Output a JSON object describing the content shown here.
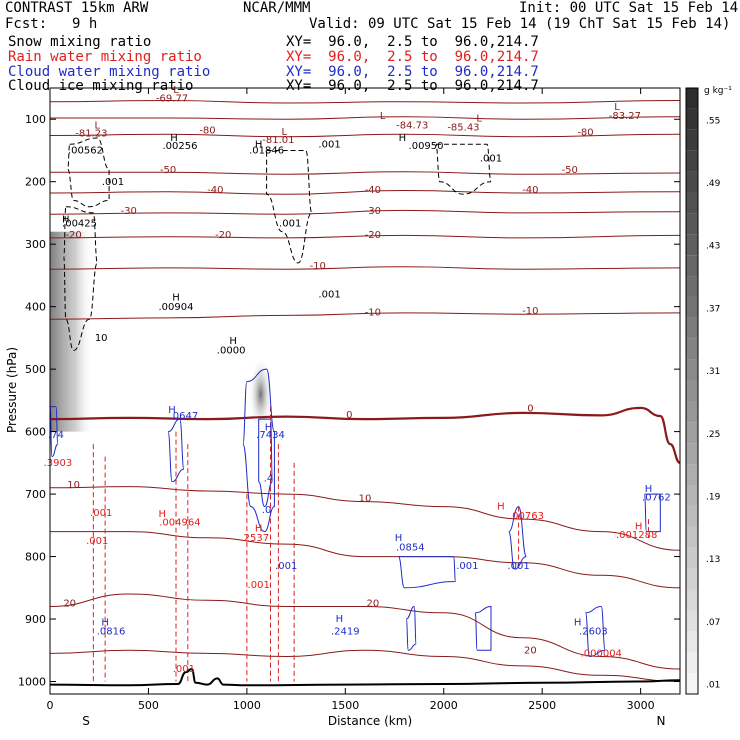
{
  "header": {
    "title_left": "CONTRAST 15km ARW",
    "title_center": "NCAR/MMM",
    "init": "Init: 00 UTC Sat 15 Feb 14",
    "fcst_label": "Fcst:",
    "fcst_value": "9 h",
    "valid": "Valid: 09 UTC Sat 15 Feb 14 (19 ChT Sat 15 Feb 14)"
  },
  "legend": [
    {
      "name": "Snow mixing ratio",
      "xy": "XY=  96.0,  2.5 to  96.0,214.7",
      "color": "#000000"
    },
    {
      "name": "Rain water mixing ratio",
      "xy": "XY=  96.0,  2.5 to  96.0,214.7",
      "color": "#e0201e"
    },
    {
      "name": "Cloud water mixing ratio",
      "xy": "XY=  96.0,  2.5 to  96.0,214.7",
      "color": "#1f2cc8"
    },
    {
      "name": "Cloud ice mixing ratio",
      "xy": "XY=  96.0,  2.5 to  96.0,214.7",
      "color": "#000000"
    }
  ],
  "colors": {
    "temperature": "#8b1a1a",
    "rain": "#e0201e",
    "cloud_water": "#1f2cc8",
    "ice": "#000000",
    "terrain": "#000000"
  },
  "chart_data": {
    "type": "cross-section",
    "xlabel": "Distance (km)",
    "ylabel": "Pressure (hPa)",
    "x_range": [
      0,
      3200
    ],
    "y_range": [
      50,
      1020
    ],
    "x_ticks": [
      "0",
      "500",
      "1000",
      "1500",
      "2000",
      "2500",
      "3000"
    ],
    "x_tick_values": [
      0,
      500,
      1000,
      1500,
      2000,
      2500,
      3000
    ],
    "y_ticks": [
      "100",
      "200",
      "300",
      "400",
      "500",
      "600",
      "700",
      "800",
      "900",
      "1000"
    ],
    "y_tick_values": [
      100,
      200,
      300,
      400,
      500,
      600,
      700,
      800,
      900,
      1000
    ],
    "endpoints": {
      "left": "S",
      "right": "N"
    },
    "colorbar": {
      "unit": "g kg⁻¹",
      "labels": [
        ".55",
        ".49",
        ".43",
        ".37",
        ".31",
        ".25",
        ".19",
        ".13",
        ".07",
        ".01"
      ],
      "label_values": [
        0.55,
        0.49,
        0.43,
        0.37,
        0.31,
        0.25,
        0.19,
        0.13,
        0.07,
        0.01
      ],
      "range": [
        0.0,
        0.58
      ]
    },
    "temperature_contours": [
      {
        "level": -70,
        "points": [
          [
            0,
            72
          ],
          [
            600,
            70
          ],
          [
            1200,
            74
          ],
          [
            1800,
            72
          ],
          [
            2400,
            74
          ],
          [
            3200,
            70
          ]
        ]
      },
      {
        "level": -60,
        "points": [
          [
            0,
            98
          ],
          [
            600,
            98
          ],
          [
            1200,
            100
          ],
          [
            1800,
            96
          ],
          [
            2400,
            100
          ],
          [
            3200,
            96
          ]
        ]
      },
      {
        "level": -50,
        "points": [
          [
            0,
            126
          ],
          [
            600,
            124
          ],
          [
            1200,
            128
          ],
          [
            1800,
            124
          ],
          [
            2400,
            128
          ],
          [
            3200,
            124
          ]
        ]
      },
      {
        "level": -50,
        "points": [
          [
            0,
            185
          ],
          [
            600,
            185
          ],
          [
            1200,
            188
          ],
          [
            1800,
            184
          ],
          [
            2400,
            188
          ],
          [
            3200,
            186
          ]
        ]
      },
      {
        "level": -40,
        "points": [
          [
            0,
            218
          ],
          [
            600,
            216
          ],
          [
            1200,
            220
          ],
          [
            1800,
            214
          ],
          [
            2400,
            218
          ],
          [
            3200,
            216
          ]
        ]
      },
      {
        "level": -30,
        "points": [
          [
            0,
            252
          ],
          [
            600,
            250
          ],
          [
            1200,
            252
          ],
          [
            1800,
            246
          ],
          [
            2400,
            250
          ],
          [
            3200,
            248
          ]
        ]
      },
      {
        "level": -20,
        "points": [
          [
            0,
            290
          ],
          [
            600,
            288
          ],
          [
            1200,
            290
          ],
          [
            1800,
            286
          ],
          [
            2400,
            290
          ],
          [
            3200,
            286
          ]
        ]
      },
      {
        "level": -10,
        "points": [
          [
            0,
            340
          ],
          [
            600,
            338
          ],
          [
            1200,
            340
          ],
          [
            1800,
            336
          ],
          [
            2400,
            340
          ],
          [
            3200,
            338
          ]
        ]
      },
      {
        "level": -10,
        "points": [
          [
            0,
            420
          ],
          [
            600,
            418
          ],
          [
            1200,
            414
          ],
          [
            1800,
            410
          ],
          [
            2400,
            412
          ],
          [
            3200,
            410
          ]
        ]
      },
      {
        "level": 0,
        "points": [
          [
            0,
            580
          ],
          [
            400,
            578
          ],
          [
            800,
            580
          ],
          [
            1200,
            576
          ],
          [
            1600,
            580
          ],
          [
            2000,
            578
          ],
          [
            2400,
            570
          ],
          [
            2800,
            574
          ],
          [
            3000,
            562
          ],
          [
            3100,
            575
          ],
          [
            3150,
            620
          ],
          [
            3200,
            650
          ]
        ]
      },
      {
        "level": 10,
        "points": [
          [
            0,
            690
          ],
          [
            400,
            688
          ],
          [
            800,
            695
          ],
          [
            1200,
            700
          ],
          [
            1600,
            712
          ],
          [
            2000,
            720
          ],
          [
            2400,
            740
          ],
          [
            2800,
            760
          ],
          [
            3200,
            790
          ]
        ]
      },
      {
        "level": 10,
        "points": [
          [
            0,
            760
          ],
          [
            400,
            760
          ],
          [
            800,
            770
          ],
          [
            1200,
            780
          ],
          [
            1600,
            800
          ],
          [
            2000,
            800
          ],
          [
            2400,
            810
          ],
          [
            2800,
            830
          ],
          [
            3200,
            850
          ]
        ]
      },
      {
        "level": 20,
        "points": [
          [
            0,
            880
          ],
          [
            400,
            860
          ],
          [
            800,
            870
          ],
          [
            1200,
            880
          ],
          [
            1600,
            880
          ],
          [
            2000,
            890
          ],
          [
            2400,
            930
          ],
          [
            2800,
            960
          ],
          [
            3200,
            980
          ]
        ]
      },
      {
        "level": 20,
        "points": [
          [
            0,
            955
          ],
          [
            400,
            950
          ],
          [
            800,
            955
          ],
          [
            1200,
            960
          ],
          [
            1600,
            950
          ],
          [
            2000,
            960
          ],
          [
            2400,
            975
          ],
          [
            2800,
            990
          ],
          [
            3200,
            1000
          ]
        ]
      }
    ],
    "temperature_labels": [
      {
        "text": "-69.77",
        "x": 620,
        "p": 72
      },
      {
        "text": "-81.23",
        "x": 210,
        "p": 128
      },
      {
        "text": "-81.01",
        "x": 1160,
        "p": 138
      },
      {
        "text": "-84.73",
        "x": 1840,
        "p": 115
      },
      {
        "text": "-85.43",
        "x": 2100,
        "p": 118
      },
      {
        "text": "-83.27",
        "x": 2920,
        "p": 100
      },
      {
        "text": "-80",
        "x": 800,
        "p": 123
      },
      {
        "text": "-80",
        "x": 2720,
        "p": 126
      },
      {
        "text": "-50",
        "x": 600,
        "p": 186
      },
      {
        "text": "-50",
        "x": 2640,
        "p": 186
      },
      {
        "text": "-40",
        "x": 840,
        "p": 218
      },
      {
        "text": "-40",
        "x": 1640,
        "p": 218
      },
      {
        "text": "-40",
        "x": 2440,
        "p": 218
      },
      {
        "text": "-30",
        "x": 400,
        "p": 252
      },
      {
        "text": "-30",
        "x": 1640,
        "p": 252
      },
      {
        "text": "-20",
        "x": 120,
        "p": 290
      },
      {
        "text": "-20",
        "x": 880,
        "p": 290
      },
      {
        "text": "-20",
        "x": 1640,
        "p": 290
      },
      {
        "text": "-10",
        "x": 1360,
        "p": 340
      },
      {
        "text": "-10",
        "x": 1640,
        "p": 414
      },
      {
        "text": "-10",
        "x": 2440,
        "p": 412
      },
      {
        "text": "0",
        "x": 1520,
        "p": 578
      },
      {
        "text": "0",
        "x": 2440,
        "p": 568
      },
      {
        "text": "10",
        "x": 120,
        "p": 690
      },
      {
        "text": "10",
        "x": 1600,
        "p": 712
      },
      {
        "text": "20",
        "x": 100,
        "p": 880
      },
      {
        "text": "20",
        "x": 1640,
        "p": 880
      },
      {
        "text": "20",
        "x": 2440,
        "p": 955
      }
    ],
    "rain_labels": [
      {
        "text": ".3903",
        "x": 40,
        "p": 655
      },
      {
        "text": ".001",
        "x": 260,
        "p": 735
      },
      {
        "text": ".001",
        "x": 240,
        "p": 780
      },
      {
        "text": ".004964",
        "x": 660,
        "p": 750
      },
      {
        "text": ".2537",
        "x": 1040,
        "p": 775
      },
      {
        "text": ".001",
        "x": 1060,
        "p": 850
      },
      {
        "text": ".00763",
        "x": 2420,
        "p": 740
      },
      {
        "text": ".001288",
        "x": 2980,
        "p": 770
      },
      {
        "text": ".000004",
        "x": 2800,
        "p": 960
      },
      {
        "text": ".001",
        "x": 680,
        "p": 985
      }
    ],
    "cloud_water_labels": [
      {
        "text": ".0647",
        "x": 680,
        "p": 580
      },
      {
        "text": ".74",
        "x": 30,
        "p": 610
      },
      {
        "text": ".7434",
        "x": 1120,
        "p": 610
      },
      {
        "text": ".4",
        "x": 1110,
        "p": 680
      },
      {
        "text": ".0",
        "x": 1100,
        "p": 730
      },
      {
        "text": ".001",
        "x": 1200,
        "p": 820
      },
      {
        "text": ".0854",
        "x": 1830,
        "p": 790
      },
      {
        "text": ".001",
        "x": 2120,
        "p": 820
      },
      {
        "text": ".001",
        "x": 2380,
        "p": 820
      },
      {
        "text": ".0762",
        "x": 3080,
        "p": 710
      },
      {
        "text": ".0816",
        "x": 310,
        "p": 925
      },
      {
        "text": ".2419",
        "x": 1500,
        "p": 925
      },
      {
        "text": ".2603",
        "x": 2760,
        "p": 925
      }
    ],
    "ice_labels": [
      {
        "text": ".00562",
        "x": 180,
        "p": 155
      },
      {
        "text": ".00256",
        "x": 660,
        "p": 148
      },
      {
        "text": ".01846",
        "x": 1100,
        "p": 155
      },
      {
        "text": ".001",
        "x": 1420,
        "p": 145
      },
      {
        "text": ".00950",
        "x": 1910,
        "p": 148
      },
      {
        "text": ".001",
        "x": 2240,
        "p": 168
      },
      {
        "text": ".001",
        "x": 320,
        "p": 205
      },
      {
        "text": ".001",
        "x": 1220,
        "p": 272
      },
      {
        "text": ".00425",
        "x": 150,
        "p": 272
      },
      {
        "text": ".00904",
        "x": 640,
        "p": 405
      },
      {
        "text": ".0000",
        "x": 920,
        "p": 475
      },
      {
        "text": ".001",
        "x": 1420,
        "p": 385
      },
      {
        "text": "10",
        "x": 260,
        "p": 455
      }
    ],
    "h_markers": [
      {
        "x": 80,
        "p": 265,
        "color": "#000000"
      },
      {
        "x": 630,
        "p": 135,
        "color": "#000000"
      },
      {
        "x": 640,
        "p": 390,
        "color": "#000000"
      },
      {
        "x": 930,
        "p": 460,
        "color": "#000000"
      },
      {
        "x": 1060,
        "p": 145,
        "color": "#000000"
      },
      {
        "x": 1790,
        "p": 135,
        "color": "#000000"
      },
      {
        "x": 620,
        "p": 570,
        "color": "#1f2cc8"
      },
      {
        "x": 1110,
        "p": 598,
        "color": "#1f2cc8"
      },
      {
        "x": 280,
        "p": 910,
        "color": "#1f2cc8"
      },
      {
        "x": 1470,
        "p": 905,
        "color": "#1f2cc8"
      },
      {
        "x": 1770,
        "p": 775,
        "color": "#1f2cc8"
      },
      {
        "x": 2680,
        "p": 910,
        "color": "#1f2cc8"
      },
      {
        "x": 3040,
        "p": 697,
        "color": "#1f2cc8"
      },
      {
        "x": 570,
        "p": 737,
        "color": "#e0201e"
      },
      {
        "x": 1060,
        "p": 760,
        "color": "#e0201e"
      },
      {
        "x": 2290,
        "p": 725,
        "color": "#e0201e"
      },
      {
        "x": 2990,
        "p": 757,
        "color": "#e0201e"
      }
    ],
    "l_markers": [
      {
        "x": 240,
        "p": 115
      },
      {
        "x": 640,
        "p": 58
      },
      {
        "x": 1190,
        "p": 125
      },
      {
        "x": 1690,
        "p": 100
      },
      {
        "x": 2180,
        "p": 104
      },
      {
        "x": 2880,
        "p": 85
      }
    ],
    "terrain": [
      [
        0,
        1005
      ],
      [
        400,
        1006
      ],
      [
        650,
        1004
      ],
      [
        690,
        985
      ],
      [
        720,
        980
      ],
      [
        740,
        1002
      ],
      [
        800,
        1005
      ],
      [
        850,
        995
      ],
      [
        880,
        1005
      ],
      [
        1000,
        1006
      ],
      [
        1500,
        1005
      ],
      [
        2000,
        1004
      ],
      [
        2500,
        1002
      ],
      [
        3000,
        1000
      ],
      [
        3200,
        998
      ]
    ]
  }
}
